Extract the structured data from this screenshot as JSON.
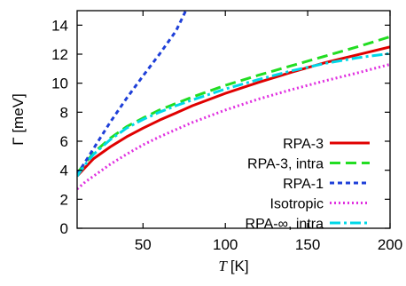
{
  "chart_data": {
    "type": "line",
    "xlabel": "T [K]",
    "xlabel_var": "T",
    "xlabel_unit": "[K]",
    "ylabel": "Γ [meV]",
    "xlim": [
      10,
      200
    ],
    "ylim": [
      0,
      15
    ],
    "x_ticks": [
      50,
      100,
      150,
      200
    ],
    "y_ticks": [
      0,
      2,
      4,
      6,
      8,
      10,
      12,
      14
    ],
    "grid": false,
    "legend_position": "bottom-right",
    "series": [
      {
        "name": "RPA-3",
        "color": "#e00000",
        "dash": "solid",
        "x": [
          10,
          15,
          20,
          30,
          40,
          50,
          60,
          70,
          80,
          100,
          120,
          140,
          160,
          180,
          200
        ],
        "y": [
          3.6,
          4.2,
          4.8,
          5.6,
          6.3,
          6.9,
          7.45,
          7.95,
          8.45,
          9.3,
          10.05,
          10.75,
          11.4,
          11.95,
          12.5
        ]
      },
      {
        "name": "RPA-3, intra",
        "color": "#22dd22",
        "dash": "long-dash",
        "x": [
          10,
          15,
          20,
          30,
          40,
          50,
          60,
          70,
          80,
          100,
          120,
          140,
          160,
          180,
          200
        ],
        "y": [
          3.8,
          4.5,
          5.2,
          6.2,
          7.0,
          7.6,
          8.15,
          8.6,
          9.05,
          9.85,
          10.55,
          11.2,
          11.85,
          12.5,
          13.2
        ]
      },
      {
        "name": "RPA-1",
        "color": "#1e3fd8",
        "dash": "short-dash",
        "x": [
          10,
          15,
          20,
          30,
          40,
          50,
          60,
          70,
          76
        ],
        "y": [
          3.7,
          4.6,
          5.5,
          7.3,
          8.95,
          10.5,
          12.0,
          13.6,
          15.0
        ]
      },
      {
        "name": "Isotropic",
        "color": "#e030e0",
        "dash": "dotted",
        "x": [
          10,
          15,
          20,
          30,
          40,
          50,
          60,
          70,
          80,
          100,
          120,
          140,
          160,
          180,
          200
        ],
        "y": [
          2.7,
          3.2,
          3.6,
          4.4,
          5.1,
          5.75,
          6.3,
          6.8,
          7.3,
          8.15,
          8.9,
          9.55,
          10.15,
          10.7,
          11.3
        ]
      },
      {
        "name": "RPA-∞, intra",
        "color": "#00d8e8",
        "dash": "dash-dot",
        "x": [
          10,
          15,
          20,
          30,
          40,
          50,
          60,
          70,
          80,
          100,
          120,
          140,
          160,
          180,
          200
        ],
        "y": [
          3.6,
          4.4,
          5.1,
          6.1,
          6.9,
          7.5,
          8.0,
          8.45,
          8.85,
          9.6,
          10.25,
          10.85,
          11.35,
          11.75,
          12.05
        ]
      }
    ]
  }
}
